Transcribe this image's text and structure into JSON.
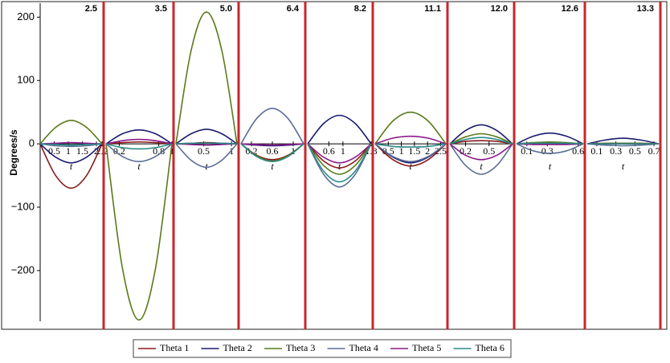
{
  "chart_data": {
    "type": "line",
    "ylabel": "Degrees/s",
    "xlabel": "t",
    "ylim": [
      -280,
      222
    ],
    "yticks": [
      {
        "value": -200,
        "label": "−200"
      },
      {
        "value": -100,
        "label": "−100"
      },
      0,
      100,
      200
    ],
    "legend": [
      {
        "name": "Theta 1",
        "color": "#8b1a1a"
      },
      {
        "name": "Theta 2",
        "color": "#1a1a6e"
      },
      {
        "name": "Theta 3",
        "color": "#5a7a1a"
      },
      {
        "name": "Theta 4",
        "color": "#5a6e96"
      },
      {
        "name": "Theta 5",
        "color": "#8b1a8b"
      },
      {
        "name": "Theta 6",
        "color": "#2a8a8a"
      }
    ],
    "panels": [
      {
        "label": "2.5",
        "xlim": [
          0,
          2.2
        ],
        "xticks": [
          0.5,
          1,
          1.5,
          2,
          2.2
        ],
        "x": [
          0,
          0.55,
          1.1,
          1.65,
          2.2
        ],
        "series": [
          {
            "values": [
              0,
              -50,
              -70,
              -50,
              0
            ]
          },
          {
            "values": [
              0,
              -21,
              -30,
              -21,
              0
            ]
          },
          {
            "values": [
              0,
              26,
              37,
              26,
              0
            ]
          },
          {
            "values": [
              0,
              -3,
              -4,
              -3,
              0
            ]
          },
          {
            "values": [
              0,
              1,
              2,
              1,
              0
            ]
          },
          {
            "values": [
              0,
              -1,
              -2,
              -1,
              0
            ]
          }
        ]
      },
      {
        "label": "3.5",
        "xlim": [
          0,
          1
        ],
        "xticks": [
          0.2,
          0.8,
          1
        ],
        "x": [
          0,
          0.25,
          0.5,
          0.75,
          1
        ],
        "series": [
          {
            "values": [
              0,
              2,
              3,
              2,
              0
            ]
          },
          {
            "values": [
              0,
              16,
              22,
              16,
              0
            ]
          },
          {
            "values": [
              0,
              -197,
              -278,
              -197,
              0
            ]
          },
          {
            "values": [
              0,
              -20,
              -28,
              -20,
              0
            ]
          },
          {
            "values": [
              0,
              5,
              7,
              5,
              0
            ]
          },
          {
            "values": [
              0,
              -6,
              -8,
              -6,
              0
            ]
          }
        ]
      },
      {
        "label": "5.0",
        "xlim": [
          0,
          1.1
        ],
        "xticks": [
          0.5,
          1
        ],
        "x": [
          0,
          0.275,
          0.55,
          0.825,
          1.1
        ],
        "series": [
          {
            "values": [
              0,
              1,
              2,
              1,
              0
            ]
          },
          {
            "values": [
              0,
              16,
              23,
              16,
              0
            ]
          },
          {
            "values": [
              0,
              148,
              208,
              148,
              0
            ]
          },
          {
            "values": [
              0,
              -26,
              -37,
              -26,
              0
            ]
          },
          {
            "values": [
              0,
              -1,
              -2,
              -1,
              0
            ]
          },
          {
            "values": [
              0,
              1,
              1,
              1,
              0
            ]
          }
        ]
      },
      {
        "label": "6.4",
        "xlim": [
          0,
          1.2
        ],
        "xticks": [
          0.2,
          0.6,
          1
        ],
        "x": [
          0,
          0.3,
          0.6,
          0.9,
          1.2
        ],
        "series": [
          {
            "values": [
              0,
              -18,
              -25,
              -18,
              0
            ]
          },
          {
            "values": [
              0,
              -2,
              -3,
              -2,
              0
            ]
          },
          {
            "values": [
              0,
              -19,
              -27,
              -19,
              0
            ]
          },
          {
            "values": [
              0,
              40,
              56,
              40,
              0
            ]
          },
          {
            "values": [
              0,
              -1,
              -2,
              -1,
              0
            ]
          },
          {
            "values": [
              0,
              -20,
              -28,
              -20,
              0
            ]
          }
        ]
      },
      {
        "label": "8.2",
        "xlim": [
          0,
          1.8
        ],
        "xticks": [
          0.6,
          1,
          1.8
        ],
        "x": [
          0,
          0.45,
          0.9,
          1.35,
          1.8
        ],
        "series": [
          {
            "values": [
              0,
              -27,
              -38,
              -27,
              0
            ]
          },
          {
            "values": [
              0,
              32,
              45,
              32,
              0
            ]
          },
          {
            "values": [
              0,
              -34,
              -48,
              -34,
              0
            ]
          },
          {
            "values": [
              0,
              -48,
              -68,
              -48,
              0
            ]
          },
          {
            "values": [
              0,
              -21,
              -30,
              -21,
              0
            ]
          },
          {
            "values": [
              0,
              -43,
              -60,
              -43,
              0
            ]
          }
        ]
      },
      {
        "label": "11.1",
        "xlim": [
          0,
          2.7
        ],
        "xticks": [
          0.5,
          1,
          1.5,
          2,
          2.5
        ],
        "x": [
          0,
          0.675,
          1.35,
          2.025,
          2.7
        ],
        "series": [
          {
            "values": [
              0,
              -25,
              -35,
              -25,
              0
            ]
          },
          {
            "values": [
              0,
              -21,
              -30,
              -21,
              0
            ]
          },
          {
            "values": [
              0,
              36,
              50,
              36,
              0
            ]
          },
          {
            "values": [
              0,
              -20,
              -28,
              -20,
              0
            ]
          },
          {
            "values": [
              0,
              9,
              12,
              9,
              0
            ]
          },
          {
            "values": [
              0,
              -4,
              -5,
              -4,
              0
            ]
          }
        ]
      },
      {
        "label": "12.0",
        "xlim": [
          0,
          0.8
        ],
        "xticks": [
          0.2,
          0.5
        ],
        "x": [
          0,
          0.2,
          0.4,
          0.6,
          0.8
        ],
        "series": [
          {
            "values": [
              0,
              4,
              5,
              4,
              0
            ]
          },
          {
            "values": [
              0,
              21,
              30,
              21,
              0
            ]
          },
          {
            "values": [
              0,
              11,
              16,
              11,
              0
            ]
          },
          {
            "values": [
              0,
              -34,
              -48,
              -34,
              0
            ]
          },
          {
            "values": [
              0,
              -18,
              -25,
              -18,
              0
            ]
          },
          {
            "values": [
              0,
              7,
              10,
              7,
              0
            ]
          }
        ]
      },
      {
        "label": "12.6",
        "xlim": [
          0,
          0.65
        ],
        "xticks": [
          0.1,
          0.3,
          0.6
        ],
        "x": [
          0,
          0.1625,
          0.325,
          0.4875,
          0.65
        ],
        "series": [
          {
            "values": [
              0,
              1,
              1,
              1,
              0
            ]
          },
          {
            "values": [
              0,
              12,
              17,
              12,
              0
            ]
          },
          {
            "values": [
              0,
              2,
              3,
              2,
              0
            ]
          },
          {
            "values": [
              0,
              -11,
              -15,
              -11,
              0
            ]
          },
          {
            "values": [
              0,
              -1,
              -1,
              -1,
              0
            ]
          },
          {
            "values": [
              0,
              1,
              1,
              1,
              0
            ]
          }
        ]
      },
      {
        "label": "13.3",
        "xlim": [
          0,
          0.75
        ],
        "xticks": [
          0.1,
          0.3,
          0.5,
          0.7
        ],
        "x": [
          0,
          0.1875,
          0.375,
          0.5625,
          0.75
        ],
        "series": [
          {
            "values": [
              0,
              0,
              0,
              0,
              0
            ]
          },
          {
            "values": [
              0,
              6,
              9,
              6,
              0
            ]
          },
          {
            "values": [
              0,
              1,
              1,
              1,
              0
            ]
          },
          {
            "values": [
              0,
              -2,
              -3,
              -2,
              0
            ]
          },
          {
            "values": [
              0,
              0,
              0,
              0,
              0
            ]
          },
          {
            "values": [
              0,
              0,
              0,
              0,
              0
            ]
          }
        ]
      }
    ]
  }
}
